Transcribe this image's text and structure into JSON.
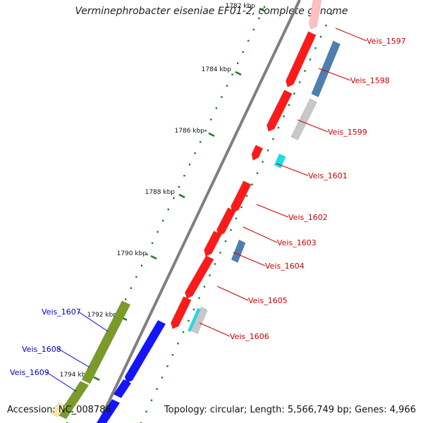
{
  "title": "Verminephrobacter eiseniae EF01-2, complete genome",
  "accession": "Accession: NC_008786",
  "topology": "Topology: circular; Length: 5,566,749 bp; Genes: 4,966",
  "colors": {
    "backbone": "#7f7f7f",
    "tick": "#1f7a1f",
    "red_gene": "#ff1a1a",
    "blue_gene": "#4f7fb0",
    "grey_gene": "#c8c8c8",
    "cyan_gene": "#19e0e6",
    "olive_gene": "#7a9a2a",
    "bright_blue_gene": "#1414ff",
    "label_red": "#cc0000",
    "label_blue": "#0000cc"
  },
  "kbp_ticks": [
    {
      "label": "1782 kbp"
    },
    {
      "label": "1784 kbp"
    },
    {
      "label": "1786 kbp"
    },
    {
      "label": "1788 kbp"
    },
    {
      "label": "1790 kbp"
    },
    {
      "label": "1792 kbp"
    },
    {
      "label": "1794 kbp"
    }
  ],
  "gene_labels": [
    {
      "name": "Veis_1597",
      "side": "right"
    },
    {
      "name": "Veis_1598",
      "side": "right"
    },
    {
      "name": "Veis_1599",
      "side": "right"
    },
    {
      "name": "Veis_1601",
      "side": "right"
    },
    {
      "name": "Veis_1602",
      "side": "right"
    },
    {
      "name": "Veis_1603",
      "side": "right"
    },
    {
      "name": "Veis_1604",
      "side": "right"
    },
    {
      "name": "Veis_1605",
      "side": "right"
    },
    {
      "name": "Veis_1606",
      "side": "right"
    },
    {
      "name": "Veis_1607",
      "side": "left"
    },
    {
      "name": "Veis_1608",
      "side": "left"
    },
    {
      "name": "Veis_1609",
      "side": "left"
    }
  ]
}
